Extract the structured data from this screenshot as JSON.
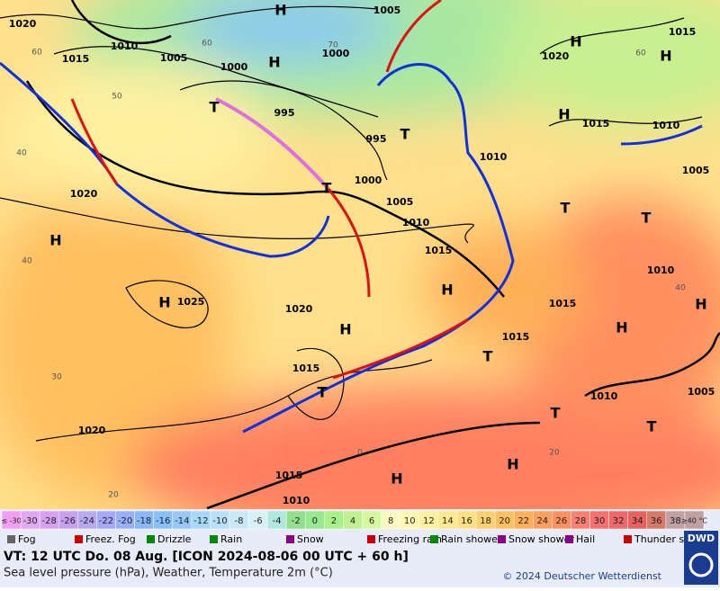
{
  "map": {
    "pressure_centers": [
      "H",
      "H",
      "H",
      "T",
      "H",
      "H",
      "T",
      "T",
      "H",
      "H",
      "H",
      "H",
      "T",
      "T",
      "H",
      "H",
      "T",
      "T",
      "T",
      "T",
      "H",
      "H"
    ],
    "isobar_labels": [
      "1020",
      "1005",
      "1010",
      "1015",
      "1005",
      "1000",
      "1000",
      "1020",
      "1015",
      "995",
      "995",
      "1015",
      "1010",
      "1010",
      "1005",
      "1020",
      "1000",
      "1005",
      "1010",
      "1015",
      "1010",
      "1025",
      "1020",
      "1015",
      "1015",
      "1015",
      "1010",
      "1005",
      "1020",
      "1015",
      "1010"
    ],
    "graticule_labels": [
      "60",
      "50",
      "40",
      "70",
      "60",
      "40",
      "30",
      "20",
      "0",
      "20",
      "40",
      "60"
    ]
  },
  "temperature_scale": {
    "first_label": "≤ -30",
    "values": [
      -30,
      -28,
      -26,
      -24,
      -22,
      -20,
      -18,
      -16,
      -14,
      -12,
      -10,
      -8,
      -6,
      -4,
      -2,
      0,
      2,
      4,
      6,
      8,
      10,
      12,
      14,
      16,
      18,
      20,
      22,
      24,
      26,
      28,
      30,
      32,
      34,
      36,
      38
    ],
    "last_label": "≥40 °C",
    "colors": [
      "#f0a0f0",
      "#e0a8f0",
      "#d8a0f0",
      "#c8a0f0",
      "#b8a8f0",
      "#a8a8f8",
      "#98b0f8",
      "#88b8f8",
      "#88c0f8",
      "#98c8f8",
      "#a8d8f8",
      "#b8e0f8",
      "#c8e8f8",
      "#d8f0f8",
      "#b0e8e0",
      "#90e090",
      "#98e890",
      "#a8f088",
      "#c0f090",
      "#d8f8a0",
      "#f8f8c0",
      "#fff8b0",
      "#fff0a0",
      "#ffe890",
      "#ffe080",
      "#ffd070",
      "#ffc060",
      "#ffb058",
      "#ffa060",
      "#ff9060",
      "#ff8070",
      "#f87070",
      "#f06868",
      "#e86060",
      "#d87868",
      "#c0a0a0"
    ]
  },
  "legend": [
    "Fog",
    "Freez. Fog",
    "Drizzle",
    "Rain",
    "Snow",
    "Freezing rain",
    "Rain shower",
    "Snow shower",
    "Hail",
    "Thunder storm"
  ],
  "footer": {
    "valid_time": "VT: 12 UTC Do.  08 Aug. [ICON 2024-08-06  00 UTC + 60 h]",
    "subtitle": "Sea level pressure (hPa), Weather, Temperature 2m (°C)",
    "copyright": "© 2024 Deutscher Wetterdienst",
    "logo": "DWD"
  }
}
